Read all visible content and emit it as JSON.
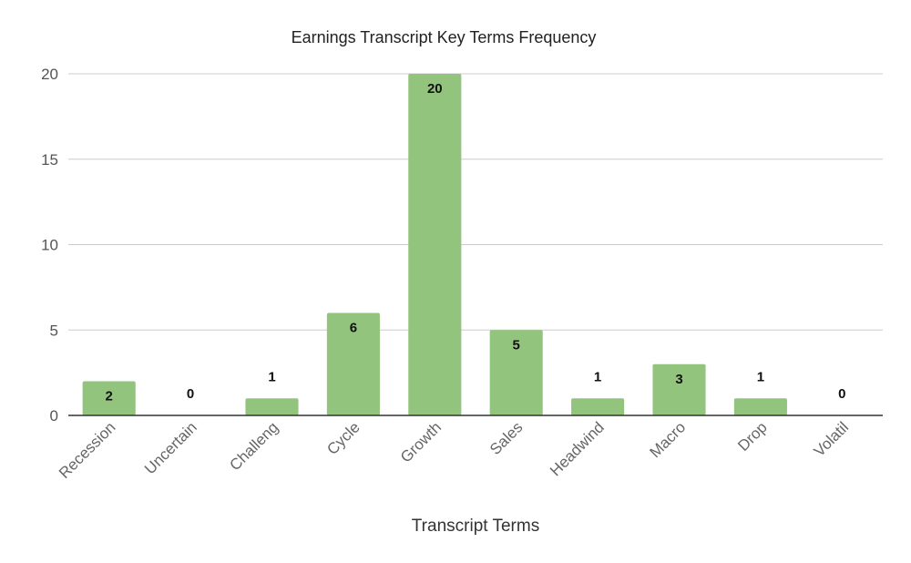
{
  "chart_data": {
    "type": "bar",
    "title": "Earnings Transcript Key Terms Frequency",
    "xlabel": "Transcript Terms",
    "ylabel": "",
    "categories": [
      "Recession",
      "Uncertain",
      "Challeng",
      "Cycle",
      "Growth",
      "Sales",
      "Headwind",
      "Macro",
      "Drop",
      "Volatil"
    ],
    "values": [
      2,
      0,
      1,
      6,
      20,
      5,
      1,
      3,
      1,
      0
    ],
    "ylim": [
      0,
      20
    ],
    "yticks": [
      0,
      5,
      10,
      15,
      20
    ],
    "grid": true,
    "legend": "none",
    "bar_color": "#93c47d"
  }
}
